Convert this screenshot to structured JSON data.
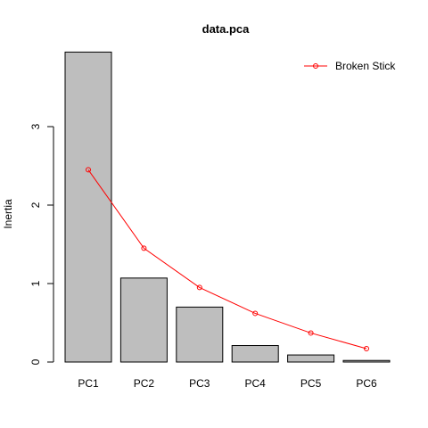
{
  "chart_data": {
    "type": "bar",
    "title": "data.pca",
    "xlabel": "",
    "ylabel": "Inertia",
    "categories": [
      "PC1",
      "PC2",
      "PC3",
      "PC4",
      "PC5",
      "PC6"
    ],
    "values": [
      3.95,
      1.07,
      0.7,
      0.21,
      0.09,
      0.02
    ],
    "yticks": [
      0,
      1,
      2,
      3
    ],
    "ytick_labels": [
      "0",
      "1",
      "2",
      "3"
    ],
    "ylim": [
      0,
      3.95
    ],
    "bar_color": "#bebebe",
    "grid": false,
    "series": [
      {
        "name": "Broken Stick",
        "type": "line",
        "color": "#ff0000",
        "values": [
          2.45,
          1.45,
          0.95,
          0.62,
          0.37,
          0.17
        ]
      }
    ],
    "legend": {
      "position": "top-right",
      "entries": [
        "Broken Stick"
      ]
    }
  }
}
